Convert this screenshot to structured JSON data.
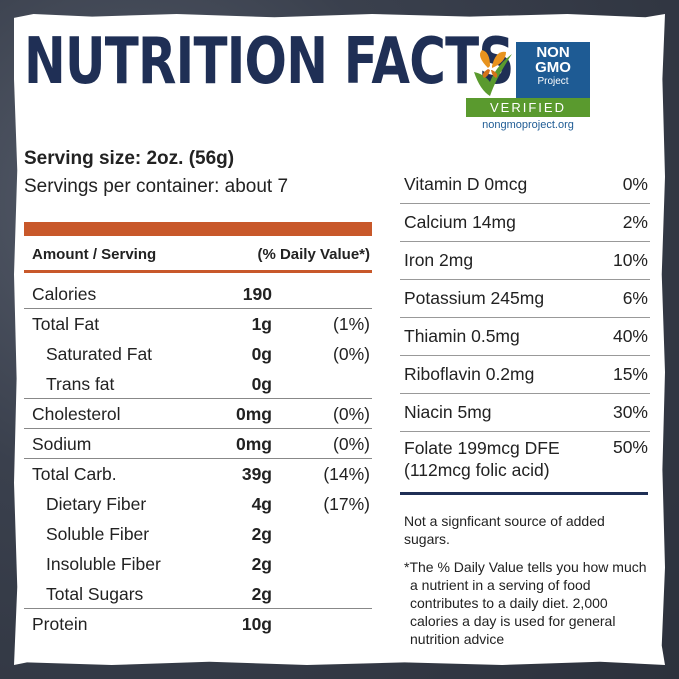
{
  "title": "NUTRITION FACTS",
  "logo": {
    "line1": "NON",
    "line2": "GMO",
    "line3": "Project",
    "verified": "VERIFIED",
    "url": "nongmoproject.org",
    "colors": {
      "blue": "#1e5b94",
      "green": "#5a9a2e",
      "butterfly": "#e8931e"
    }
  },
  "serving": {
    "size": "Serving size: 2oz. (56g)",
    "per_container": "Servings per container: about 7"
  },
  "header": {
    "amount": "Amount / Serving",
    "dv": "(% Daily Value*)"
  },
  "nutrients": [
    {
      "name": "Calories",
      "amount": "190",
      "dv": ""
    },
    {
      "name": "Total Fat",
      "amount": "1g",
      "dv": "(1%)"
    },
    {
      "name": "Saturated Fat",
      "amount": "0g",
      "dv": "(0%)"
    },
    {
      "name": "Trans fat",
      "amount": "0g",
      "dv": ""
    },
    {
      "name": "Cholesterol",
      "amount": "0mg",
      "dv": "(0%)"
    },
    {
      "name": "Sodium",
      "amount": "0mg",
      "dv": "(0%)"
    },
    {
      "name": "Total Carb.",
      "amount": "39g",
      "dv": "(14%)"
    },
    {
      "name": "Dietary Fiber",
      "amount": "4g",
      "dv": "(17%)"
    },
    {
      "name": "Soluble Fiber",
      "amount": "2g",
      "dv": ""
    },
    {
      "name": "Insoluble Fiber",
      "amount": "2g",
      "dv": ""
    },
    {
      "name": "Total Sugars",
      "amount": "2g",
      "dv": ""
    },
    {
      "name": "Protein",
      "amount": "10g",
      "dv": ""
    }
  ],
  "vitamins": [
    {
      "name": "Vitamin D 0mcg",
      "dv": "0%"
    },
    {
      "name": "Calcium 14mg",
      "dv": "2%"
    },
    {
      "name": "Iron 2mg",
      "dv": "10%"
    },
    {
      "name": "Potassium 245mg",
      "dv": "6%"
    },
    {
      "name": "Thiamin 0.5mg",
      "dv": "40%"
    },
    {
      "name": "Riboflavin 0.2mg",
      "dv": "15%"
    },
    {
      "name": "Niacin 5mg",
      "dv": "30%"
    },
    {
      "name": "Folate 199mcg DFE (112mcg folic acid)",
      "dv": "50%"
    }
  ],
  "notes": {
    "sugars": "Not a signficant source of added sugars.",
    "daily_value": "*The % Daily Value tells you how much a nutrient in a serving of food contributes to a daily diet. 2,000 calories a day is used for general nutrition advice"
  },
  "colors": {
    "title": "#1f2f55",
    "accent": "#c8582a"
  }
}
